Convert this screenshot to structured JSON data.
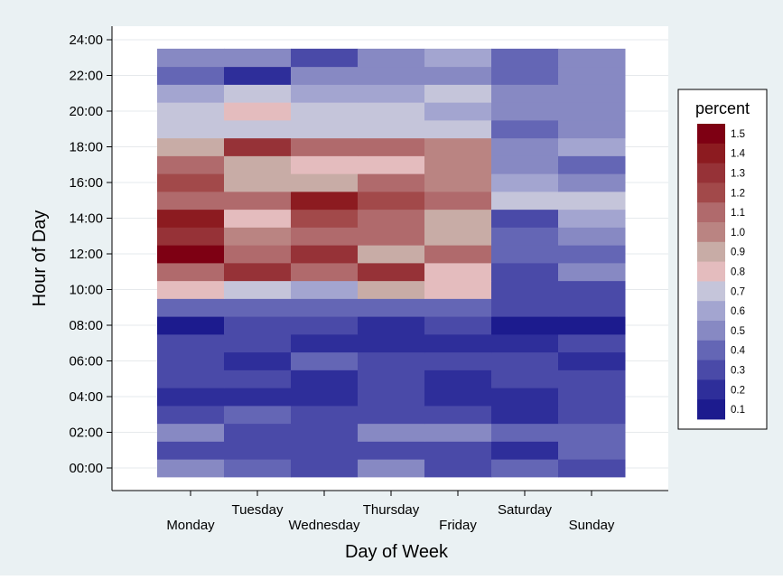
{
  "chart_data": {
    "type": "heatmap",
    "xlabel": "Day of Week",
    "ylabel": "Hour of Day",
    "days": [
      "Monday",
      "Tuesday",
      "Wednesday",
      "Thursday",
      "Friday",
      "Saturday",
      "Sunday"
    ],
    "hours": [
      0,
      1,
      2,
      3,
      4,
      5,
      6,
      7,
      8,
      9,
      10,
      11,
      12,
      13,
      14,
      15,
      16,
      17,
      18,
      19,
      20,
      21,
      22,
      23
    ],
    "ytick_labels": [
      "00:00",
      "02:00",
      "04:00",
      "06:00",
      "08:00",
      "10:00",
      "12:00",
      "14:00",
      "16:00",
      "18:00",
      "20:00",
      "22:00",
      "24:00"
    ],
    "ylim": [
      0,
      24
    ],
    "grid": true,
    "legend": {
      "title": "percent",
      "position": "right",
      "bins": [
        {
          "label": "1.5",
          "color": "#7e0013"
        },
        {
          "label": "1.4",
          "color": "#8c1b20"
        },
        {
          "label": "1.3",
          "color": "#963237"
        },
        {
          "label": "1.2",
          "color": "#a2494a"
        },
        {
          "label": "1.1",
          "color": "#b06a6c"
        },
        {
          "label": "1.0",
          "color": "#ba8482"
        },
        {
          "label": "0.9",
          "color": "#c8aca6"
        },
        {
          "label": "0.8",
          "color": "#e4bcbe"
        },
        {
          "label": "0.7",
          "color": "#c5c5da"
        },
        {
          "label": "0.6",
          "color": "#a3a5d0"
        },
        {
          "label": "0.5",
          "color": "#8789c3"
        },
        {
          "label": "0.4",
          "color": "#6466b5"
        },
        {
          "label": "0.3",
          "color": "#4a4aa8"
        },
        {
          "label": "0.2",
          "color": "#2e2e9a"
        },
        {
          "label": "0.1",
          "color": "#1c1b8e"
        }
      ]
    },
    "values": [
      [
        0.5,
        0.4,
        0.3,
        0.5,
        0.3,
        0.4,
        0.3
      ],
      [
        0.3,
        0.3,
        0.3,
        0.3,
        0.3,
        0.2,
        0.4
      ],
      [
        0.5,
        0.3,
        0.3,
        0.5,
        0.5,
        0.4,
        0.4
      ],
      [
        0.3,
        0.4,
        0.3,
        0.3,
        0.3,
        0.2,
        0.3
      ],
      [
        0.2,
        0.2,
        0.2,
        0.3,
        0.2,
        0.2,
        0.3
      ],
      [
        0.3,
        0.3,
        0.2,
        0.3,
        0.2,
        0.3,
        0.3
      ],
      [
        0.3,
        0.2,
        0.4,
        0.3,
        0.3,
        0.3,
        0.2
      ],
      [
        0.3,
        0.3,
        0.2,
        0.2,
        0.2,
        0.2,
        0.3
      ],
      [
        0.1,
        0.3,
        0.3,
        0.2,
        0.3,
        0.1,
        0.1
      ],
      [
        0.4,
        0.4,
        0.4,
        0.4,
        0.4,
        0.3,
        0.3
      ],
      [
        0.8,
        0.7,
        0.6,
        0.9,
        0.8,
        0.3,
        0.3
      ],
      [
        1.1,
        1.3,
        1.1,
        1.3,
        0.8,
        0.3,
        0.5
      ],
      [
        1.5,
        1.1,
        1.3,
        0.9,
        1.1,
        0.4,
        0.4
      ],
      [
        1.3,
        1.0,
        1.1,
        1.1,
        0.9,
        0.4,
        0.5
      ],
      [
        1.4,
        0.8,
        1.2,
        1.1,
        0.9,
        0.3,
        0.6
      ],
      [
        1.1,
        1.1,
        1.4,
        1.2,
        1.1,
        0.7,
        0.7
      ],
      [
        1.2,
        0.9,
        0.9,
        1.1,
        1.0,
        0.6,
        0.5
      ],
      [
        1.1,
        0.9,
        0.8,
        0.8,
        1.0,
        0.5,
        0.4
      ],
      [
        0.9,
        1.3,
        1.1,
        1.1,
        1.0,
        0.5,
        0.6
      ],
      [
        0.7,
        0.7,
        0.7,
        0.7,
        0.7,
        0.4,
        0.5
      ],
      [
        0.7,
        0.8,
        0.7,
        0.7,
        0.6,
        0.5,
        0.5
      ],
      [
        0.6,
        0.7,
        0.6,
        0.6,
        0.7,
        0.5,
        0.5
      ],
      [
        0.4,
        0.2,
        0.5,
        0.5,
        0.5,
        0.4,
        0.5
      ],
      [
        0.5,
        0.5,
        0.3,
        0.5,
        0.6,
        0.4,
        0.5
      ]
    ]
  }
}
